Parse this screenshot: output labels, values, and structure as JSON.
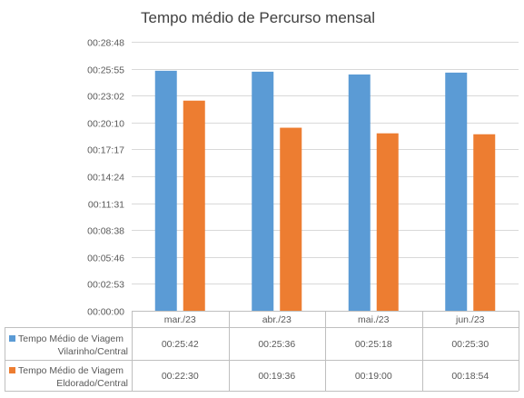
{
  "chart_data": {
    "type": "bar",
    "title": "Tempo médio de Percurso mensal",
    "categories": [
      "mar./23",
      "abr./23",
      "mai./23",
      "jun./23"
    ],
    "series": [
      {
        "name": "Tempo Médio de Viagem Vilarinho/Central",
        "name_lines": [
          "Tempo Médio de Viagem",
          "Vilarinho/Central"
        ],
        "color": "#5B9BD5",
        "values": [
          "00:25:42",
          "00:25:36",
          "00:25:18",
          "00:25:30"
        ],
        "seconds": [
          1542,
          1536,
          1518,
          1530
        ]
      },
      {
        "name": "Tempo Médio de Viagem Eldorado/Central",
        "name_lines": [
          "Tempo Médio de Viagem",
          "Eldorado/Central"
        ],
        "color": "#ED7D31",
        "values": [
          "00:22:30",
          "00:19:36",
          "00:19:00",
          "00:18:54"
        ],
        "seconds": [
          1350,
          1176,
          1140,
          1134
        ]
      }
    ],
    "y_ticks": [
      "00:00:00",
      "00:02:53",
      "00:05:46",
      "00:08:38",
      "00:11:31",
      "00:14:24",
      "00:17:17",
      "00:20:10",
      "00:23:02",
      "00:25:55",
      "00:28:48"
    ],
    "ylim_seconds": [
      0,
      1728
    ],
    "grid": true,
    "legend": "data-table"
  }
}
